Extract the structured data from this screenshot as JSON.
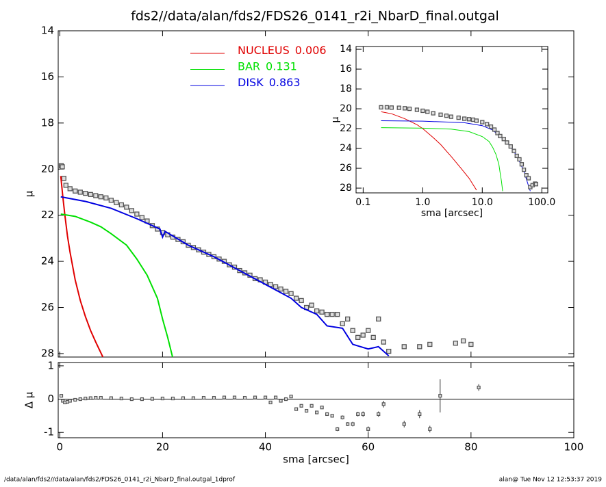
{
  "page": {
    "footer_left": "/data/alan/fds2//data/alan/fds2/FDS26_0141_r2i_NbarD_final.outgal_1dprof",
    "footer_right": "alan@  Tue Nov 12 12:53:37 2019"
  },
  "chart_data": [
    {
      "type": "line",
      "title": "fds2//data/alan/fds2/FDS26_0141_r2i_NbarD_final.outgal",
      "ylabel": "μ",
      "xlim": [
        -0.3,
        100
      ],
      "ylim": [
        28.15,
        14
      ],
      "xticks": [
        0,
        20,
        40,
        60,
        80,
        100
      ],
      "yticks": [
        14,
        16,
        18,
        20,
        22,
        24,
        26,
        28
      ],
      "data_points": {
        "color": "#555555",
        "x": [
          0.3,
          0.5,
          0.8,
          1.2,
          2,
          3,
          4,
          5,
          6,
          7,
          8,
          9,
          10,
          11,
          12,
          13,
          14,
          15,
          16,
          17,
          18,
          19,
          20,
          21,
          22,
          23,
          24,
          25,
          26,
          27,
          28,
          29,
          30,
          31,
          32,
          33,
          34,
          35,
          36,
          37,
          38,
          39,
          40,
          41,
          42,
          43,
          44,
          45,
          46,
          47,
          48,
          49,
          50,
          51,
          52,
          53,
          54,
          55,
          56,
          57,
          58,
          59,
          60,
          61,
          62,
          63,
          64,
          67,
          70,
          72,
          77,
          78.5,
          80
        ],
        "values": [
          19.85,
          19.9,
          20.4,
          20.7,
          20.85,
          20.95,
          21.0,
          21.05,
          21.1,
          21.15,
          21.2,
          21.25,
          21.35,
          21.45,
          21.55,
          21.65,
          21.8,
          21.95,
          22.1,
          22.25,
          22.45,
          22.6,
          22.75,
          22.85,
          22.95,
          23.05,
          23.15,
          23.3,
          23.4,
          23.5,
          23.6,
          23.7,
          23.8,
          23.9,
          24.0,
          24.15,
          24.25,
          24.4,
          24.5,
          24.6,
          24.75,
          24.8,
          24.9,
          25.0,
          25.1,
          25.2,
          25.3,
          25.4,
          25.6,
          25.7,
          26.0,
          25.9,
          26.15,
          26.2,
          26.3,
          26.3,
          26.3,
          26.7,
          26.5,
          27.0,
          27.3,
          27.2,
          27.0,
          27.3,
          26.5,
          27.5,
          27.9,
          27.7,
          27.7,
          27.6,
          27.55,
          27.45,
          27.6
        ]
      },
      "series": [
        {
          "name": "NUCLEUS",
          "fraction": 0.006,
          "color": "#e00000",
          "x": [
            0.2,
            0.6,
            1,
            1.5,
            2,
            3,
            4,
            5,
            6,
            7,
            8.5
          ],
          "values": [
            20.3,
            21.2,
            22.0,
            22.9,
            23.6,
            24.8,
            25.7,
            26.4,
            27.0,
            27.5,
            28.2
          ]
        },
        {
          "name": "BAR",
          "fraction": 0.131,
          "color": "#00e000",
          "x": [
            0.2,
            3,
            6,
            8,
            10,
            13,
            15,
            17,
            19,
            20,
            21,
            22
          ],
          "values": [
            21.95,
            22.05,
            22.3,
            22.5,
            22.8,
            23.3,
            23.9,
            24.6,
            25.6,
            26.5,
            27.3,
            28.2
          ]
        },
        {
          "name": "DISK",
          "fraction": 0.863,
          "color": "#0000e0",
          "x": [
            0.2,
            5,
            10,
            15,
            19.5,
            20,
            20.5,
            25,
            30,
            35,
            40,
            45,
            47,
            50,
            52,
            55,
            57,
            60,
            62,
            64
          ],
          "values": [
            21.2,
            21.4,
            21.7,
            22.15,
            22.6,
            22.95,
            22.7,
            23.3,
            23.8,
            24.4,
            25.0,
            25.6,
            26.0,
            26.3,
            26.8,
            26.9,
            27.6,
            27.8,
            27.7,
            28.1
          ]
        }
      ]
    },
    {
      "type": "residual",
      "ylabel": "Δ μ",
      "xlabel": "sma [arcsec]",
      "xlim": [
        -0.3,
        100
      ],
      "ylim": [
        -1.16,
        1.1
      ],
      "xticks": [
        0,
        20,
        40,
        60,
        80,
        100
      ],
      "yticks": [
        -1,
        0,
        1
      ],
      "x": [
        0.3,
        0.6,
        1,
        1.5,
        2,
        3,
        4,
        5,
        6,
        7,
        8,
        10,
        12,
        14,
        16,
        18,
        20,
        22,
        24,
        26,
        28,
        30,
        32,
        34,
        36,
        38,
        40,
        41,
        42,
        43,
        44,
        45,
        46,
        47,
        48,
        49,
        50,
        51,
        52,
        53,
        54,
        55,
        56,
        57,
        58,
        59,
        60,
        62,
        63,
        67,
        70,
        72,
        74,
        81.5
      ],
      "values": [
        0.1,
        -0.05,
        -0.1,
        -0.08,
        -0.05,
        -0.02,
        0.0,
        0.02,
        0.03,
        0.04,
        0.04,
        0.03,
        0.02,
        0.0,
        0.0,
        0.01,
        0.02,
        0.02,
        0.03,
        0.03,
        0.04,
        0.04,
        0.05,
        0.05,
        0.04,
        0.05,
        0.05,
        -0.1,
        0.05,
        -0.05,
        0.0,
        0.08,
        -0.3,
        -0.2,
        -0.35,
        -0.2,
        -0.4,
        -0.25,
        -0.45,
        -0.5,
        -0.9,
        -0.55,
        -0.75,
        -0.75,
        -0.45,
        -0.45,
        -0.9,
        -0.45,
        -0.15,
        -0.75,
        -0.45,
        -0.9,
        0.1,
        0.35
      ],
      "errors": [
        0.02,
        0.02,
        0.02,
        0.02,
        0.02,
        0.02,
        0.02,
        0.02,
        0.02,
        0.02,
        0.02,
        0.02,
        0.02,
        0.02,
        0.02,
        0.02,
        0.02,
        0.02,
        0.02,
        0.02,
        0.02,
        0.02,
        0.02,
        0.02,
        0.02,
        0.02,
        0.02,
        0.03,
        0.03,
        0.03,
        0.03,
        0.03,
        0.04,
        0.04,
        0.04,
        0.04,
        0.05,
        0.05,
        0.05,
        0.05,
        0.06,
        0.06,
        0.06,
        0.07,
        0.07,
        0.08,
        0.08,
        0.08,
        0.1,
        0.1,
        0.12,
        0.1,
        0.5,
        0.1
      ]
    },
    {
      "type": "inset",
      "ylabel": "μ",
      "xlabel": "sma [arcsec]",
      "xscale": "log",
      "xlim": [
        0.076,
        126
      ],
      "ylim": [
        28.48,
        13.72
      ],
      "xticks": [
        {
          "value": 0.1,
          "label": "0.1"
        },
        {
          "value": 1,
          "label": "1.0"
        },
        {
          "value": 10,
          "label": "10.0"
        },
        {
          "value": 100,
          "label": "100.0"
        }
      ],
      "yticks": [
        14,
        16,
        18,
        20,
        22,
        24,
        26,
        28
      ],
      "data_points": {
        "color": "#555555",
        "x": [
          0.2,
          0.25,
          0.3,
          0.4,
          0.5,
          0.6,
          0.8,
          1,
          1.2,
          1.5,
          2,
          2.5,
          3,
          4,
          5,
          6,
          7,
          8,
          10,
          12,
          14,
          16,
          18,
          20,
          23,
          26,
          30,
          34,
          38,
          42,
          46,
          50,
          55,
          60,
          64,
          70,
          77,
          80
        ],
        "values": [
          19.85,
          19.85,
          19.88,
          19.9,
          19.95,
          20.0,
          20.1,
          20.2,
          20.3,
          20.45,
          20.6,
          20.7,
          20.8,
          20.9,
          21.0,
          21.05,
          21.1,
          21.2,
          21.35,
          21.55,
          21.8,
          22.1,
          22.45,
          22.75,
          23.05,
          23.4,
          23.8,
          24.25,
          24.75,
          25.1,
          25.6,
          26.15,
          26.7,
          27.0,
          27.9,
          27.7,
          27.55,
          27.6
        ]
      },
      "series": [
        {
          "color": "#e00000",
          "x": [
            0.2,
            0.3,
            0.5,
            0.8,
            1,
            1.5,
            2,
            3,
            4,
            6,
            8
          ],
          "values": [
            20.3,
            20.5,
            21.0,
            21.6,
            22.0,
            22.9,
            23.6,
            24.8,
            25.7,
            27.0,
            28.2
          ]
        },
        {
          "color": "#00e000",
          "x": [
            0.2,
            1,
            3,
            6,
            10,
            13,
            15,
            17,
            19,
            20,
            21,
            22
          ],
          "values": [
            21.9,
            21.95,
            22.05,
            22.3,
            22.8,
            23.3,
            23.9,
            24.6,
            25.6,
            26.5,
            27.3,
            28.3
          ]
        },
        {
          "color": "#0000e0",
          "x": [
            0.2,
            1,
            5,
            10,
            15,
            20,
            30,
            40,
            50,
            60,
            64
          ],
          "values": [
            21.2,
            21.25,
            21.4,
            21.7,
            22.15,
            22.8,
            23.8,
            25.0,
            26.3,
            27.8,
            28.3
          ]
        }
      ]
    }
  ]
}
